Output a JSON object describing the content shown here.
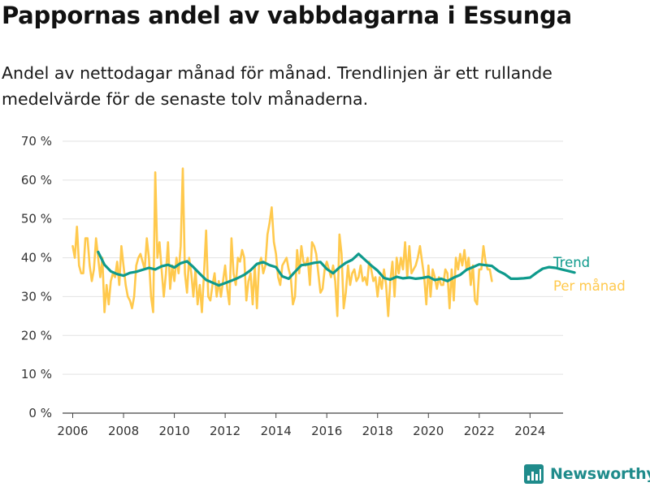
{
  "header": {
    "title": "Pappornas andel av vabbdagarna i Essunga",
    "subtitle": "Andel av nettodagar månad för månad. Trendlinjen är ett rullande medelvärde för de senaste tolv månaderna."
  },
  "brand": {
    "name": "Newsworthy",
    "icon": "bar-chart-logo-icon",
    "color": "#1f8b8b"
  },
  "chart_data": {
    "type": "line",
    "title": "Pappornas andel av vabbdagarna i Essunga",
    "xlabel": "",
    "ylabel": "",
    "xlim": [
      2005.6,
      2025.3
    ],
    "ylim": [
      0,
      70
    ],
    "xticks": [
      2006,
      2008,
      2010,
      2012,
      2014,
      2016,
      2018,
      2020,
      2022,
      2024
    ],
    "yticks": [
      0,
      10,
      20,
      30,
      40,
      50,
      60,
      70
    ],
    "ytick_labels": [
      "0 %",
      "10 %",
      "20 %",
      "30 %",
      "40 %",
      "50 %",
      "60 %",
      "70 %"
    ],
    "grid": "horizontal",
    "legend": "right-end-labels",
    "series": [
      {
        "name": "Trend",
        "color": "#0e9a8c",
        "start_year": 2007.0,
        "step_months": 3,
        "values": [
          41.5,
          38.2,
          36.5,
          35.8,
          35.4,
          36.1,
          36.4,
          36.9,
          37.4,
          37.0,
          37.8,
          38.2,
          37.5,
          38.6,
          39.1,
          37.6,
          35.9,
          34.3,
          33.6,
          32.9,
          33.5,
          34.1,
          34.8,
          35.6,
          36.8,
          38.4,
          38.9,
          38.1,
          37.6,
          35.2,
          34.6,
          36.4,
          38.1,
          38.3,
          38.7,
          38.9,
          37.1,
          36.0,
          37.5,
          38.7,
          39.5,
          41.0,
          39.5,
          38.0,
          36.7,
          34.8,
          34.4,
          35.1,
          34.7,
          34.9,
          34.6,
          34.8,
          35.1,
          34.3,
          34.6,
          34.0,
          34.9,
          35.6,
          36.9,
          37.6,
          38.3,
          38.1,
          37.9,
          36.6,
          35.8,
          34.6,
          34.6,
          34.7,
          34.9,
          36.1,
          37.2,
          37.6,
          37.4,
          37.0,
          36.6,
          36.2
        ]
      },
      {
        "name": "Per månad",
        "color": "#ffc94d",
        "start_year": 2006.0,
        "step_months": 1,
        "values": [
          43,
          40,
          48,
          38,
          36,
          36,
          45,
          45,
          38,
          34,
          37,
          45,
          40,
          35,
          40,
          26,
          33,
          28,
          34,
          36,
          35,
          39,
          33,
          43,
          38,
          33,
          30,
          29,
          27,
          30,
          38,
          40,
          41,
          39,
          37,
          45,
          40,
          30,
          26,
          62,
          40,
          44,
          37,
          30,
          36,
          44,
          32,
          38,
          34,
          40,
          36,
          43,
          63,
          36,
          31,
          40,
          36,
          30,
          37,
          28,
          33,
          26,
          36,
          47,
          30,
          29,
          33,
          36,
          30,
          34,
          30,
          34,
          38,
          32,
          28,
          45,
          36,
          33,
          40,
          39,
          42,
          40,
          29,
          34,
          36,
          28,
          38,
          27,
          38,
          40,
          36,
          38,
          46,
          49,
          53,
          44,
          41,
          35,
          33,
          38,
          39,
          40,
          37,
          35,
          28,
          30,
          42,
          36,
          43,
          39,
          38,
          40,
          33,
          44,
          43,
          41,
          36,
          31,
          32,
          37,
          39,
          37,
          35,
          38,
          34,
          25,
          46,
          41,
          27,
          31,
          38,
          33,
          36,
          37,
          34,
          35,
          38,
          34,
          35,
          33,
          39,
          37,
          34,
          35,
          30,
          35,
          32,
          37,
          33,
          25,
          34,
          39,
          30,
          40,
          36,
          40,
          37,
          44,
          35,
          43,
          36,
          37,
          38,
          40,
          43,
          39,
          35,
          28,
          38,
          30,
          37,
          35,
          32,
          35,
          33,
          33,
          37,
          36,
          27,
          37,
          29,
          40,
          37,
          41,
          38,
          42,
          37,
          40,
          33,
          38,
          29,
          28,
          37,
          37,
          43,
          39,
          37,
          37,
          34
        ]
      }
    ]
  }
}
